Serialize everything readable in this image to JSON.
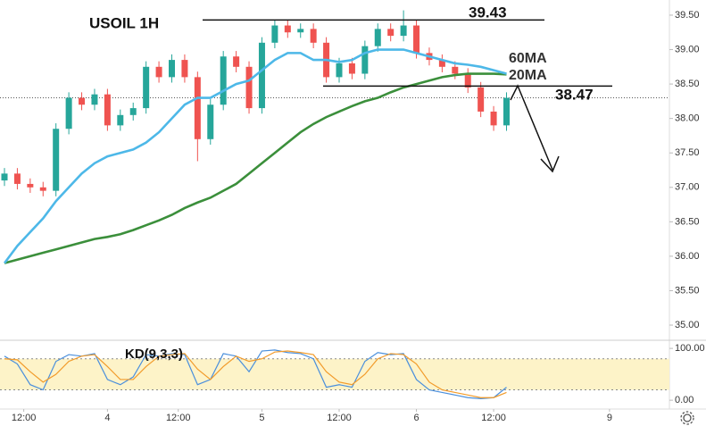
{
  "chart_data": {
    "type": "candlestick",
    "title": "USOIL 1H",
    "x": [
      0,
      2,
      4,
      6,
      8,
      10,
      12,
      14,
      16,
      18,
      20,
      22,
      24,
      26,
      28,
      30,
      32,
      34,
      36,
      38,
      40,
      42,
      44,
      46,
      48,
      50,
      52,
      54,
      56,
      58,
      60,
      62,
      64,
      66,
      68,
      70,
      72,
      74,
      76,
      78
    ],
    "open": [
      37.1,
      37.2,
      37.05,
      37.0,
      36.95,
      37.85,
      38.3,
      38.2,
      38.35,
      37.9,
      38.05,
      38.15,
      38.75,
      38.6,
      38.85,
      38.6,
      37.7,
      38.2,
      38.9,
      38.75,
      38.15,
      39.1,
      39.35,
      39.25,
      39.3,
      39.1,
      38.6,
      38.8,
      38.65,
      39.05,
      39.3,
      39.2,
      39.35,
      38.95,
      38.85,
      38.75,
      38.65,
      38.45,
      38.1,
      37.9
    ],
    "high": [
      37.28,
      37.28,
      37.13,
      37.08,
      37.93,
      38.38,
      38.38,
      38.43,
      38.43,
      38.13,
      38.23,
      38.83,
      38.83,
      38.93,
      38.93,
      38.68,
      38.28,
      38.98,
      38.98,
      38.83,
      39.18,
      39.43,
      39.43,
      39.38,
      39.38,
      39.18,
      38.88,
      38.88,
      39.13,
      39.38,
      39.38,
      39.57,
      39.43,
      39.03,
      38.93,
      38.83,
      38.73,
      38.53,
      38.18,
      38.38
    ],
    "low": [
      37.02,
      36.97,
      36.92,
      36.87,
      36.87,
      37.77,
      38.12,
      38.12,
      37.82,
      37.82,
      37.97,
      38.07,
      38.52,
      38.52,
      38.52,
      37.38,
      37.62,
      38.12,
      38.67,
      38.07,
      38.07,
      39.02,
      39.17,
      39.17,
      39.02,
      38.52,
      38.52,
      38.57,
      38.57,
      38.97,
      39.12,
      39.12,
      38.87,
      38.77,
      38.67,
      38.57,
      38.37,
      38.02,
      37.82,
      37.82
    ],
    "close": [
      37.2,
      37.05,
      37.0,
      36.95,
      37.85,
      38.3,
      38.2,
      38.35,
      37.9,
      38.05,
      38.15,
      38.75,
      38.6,
      38.85,
      38.6,
      37.7,
      38.2,
      38.9,
      38.75,
      38.15,
      39.1,
      39.35,
      39.25,
      39.3,
      39.1,
      38.6,
      38.8,
      38.65,
      39.05,
      39.3,
      39.2,
      39.35,
      38.95,
      38.85,
      38.75,
      38.65,
      38.45,
      38.1,
      37.9,
      38.3
    ],
    "up_color": "#26a69a",
    "down_color": "#ef5350",
    "xlim": [
      0,
      104
    ],
    "xticks": [
      {
        "value": 3,
        "label": "12:00"
      },
      {
        "value": 16,
        "label": "4"
      },
      {
        "value": 27,
        "label": "12:00"
      },
      {
        "value": 40,
        "label": "5"
      },
      {
        "value": 52,
        "label": "12:00"
      },
      {
        "value": 64,
        "label": "6"
      },
      {
        "value": 76,
        "label": "12:00"
      },
      {
        "value": 94,
        "label": "9"
      }
    ],
    "ylim": [
      34.78,
      39.72
    ],
    "yticks": [
      {
        "value": 35,
        "label": "35.00"
      },
      {
        "value": 35.5,
        "label": "35.50"
      },
      {
        "value": 36,
        "label": "36.00"
      },
      {
        "value": 36.5,
        "label": "36.50"
      },
      {
        "value": 37,
        "label": "37.00"
      },
      {
        "value": 37.5,
        "label": "37.50"
      },
      {
        "value": 38,
        "label": "38.00"
      },
      {
        "value": 38.5,
        "label": "38.50"
      },
      {
        "value": 39,
        "label": "39.00"
      },
      {
        "value": 39.5,
        "label": "39.50"
      }
    ],
    "ma": [
      {
        "name": "60MA",
        "color": "#3b8f3b",
        "values": [
          35.9,
          35.95,
          36.0,
          36.05,
          36.1,
          36.15,
          36.2,
          36.25,
          36.28,
          36.32,
          36.38,
          36.45,
          36.52,
          36.6,
          36.7,
          36.78,
          36.85,
          36.95,
          37.05,
          37.2,
          37.35,
          37.5,
          37.65,
          37.8,
          37.92,
          38.02,
          38.1,
          38.18,
          38.25,
          38.3,
          38.38,
          38.45,
          38.5,
          38.55,
          38.6,
          38.63,
          38.65,
          38.65,
          38.65,
          38.64
        ]
      },
      {
        "name": "20MA",
        "color": "#4db8e8",
        "values": [
          35.9,
          36.15,
          36.35,
          36.55,
          36.8,
          37.0,
          37.2,
          37.35,
          37.45,
          37.5,
          37.55,
          37.65,
          37.8,
          38.0,
          38.2,
          38.3,
          38.3,
          38.4,
          38.5,
          38.55,
          38.7,
          38.85,
          38.95,
          38.95,
          38.85,
          38.85,
          38.82,
          38.85,
          38.95,
          39.0,
          39.0,
          39.0,
          38.95,
          38.9,
          38.85,
          38.8,
          38.78,
          38.75,
          38.7,
          38.65
        ]
      }
    ],
    "levels": [
      39.43,
      38.47
    ],
    "indicator": {
      "title": "KD(9,3,3)",
      "ylim": [
        -17,
        114
      ],
      "yticks": [
        {
          "value": 0,
          "label": "0.00"
        },
        {
          "value": 100,
          "label": "100.00"
        }
      ],
      "bands": [
        20,
        80
      ],
      "band_color": "#fdf3c8",
      "series": [
        {
          "color": "#4a8fdc",
          "values": [
            85,
            70,
            30,
            20,
            75,
            88,
            85,
            90,
            40,
            30,
            45,
            88,
            85,
            90,
            88,
            30,
            40,
            90,
            85,
            55,
            95,
            97,
            92,
            90,
            80,
            25,
            30,
            25,
            75,
            92,
            88,
            90,
            40,
            20,
            15,
            10,
            5,
            3,
            5,
            25
          ]
        },
        {
          "color": "#f29b2a",
          "values": [
            80,
            78,
            55,
            35,
            50,
            75,
            85,
            88,
            65,
            40,
            40,
            65,
            85,
            88,
            90,
            60,
            40,
            65,
            85,
            75,
            80,
            93,
            95,
            92,
            88,
            55,
            35,
            30,
            50,
            80,
            90,
            88,
            70,
            35,
            20,
            15,
            10,
            5,
            5,
            15
          ]
        }
      ]
    }
  }
}
